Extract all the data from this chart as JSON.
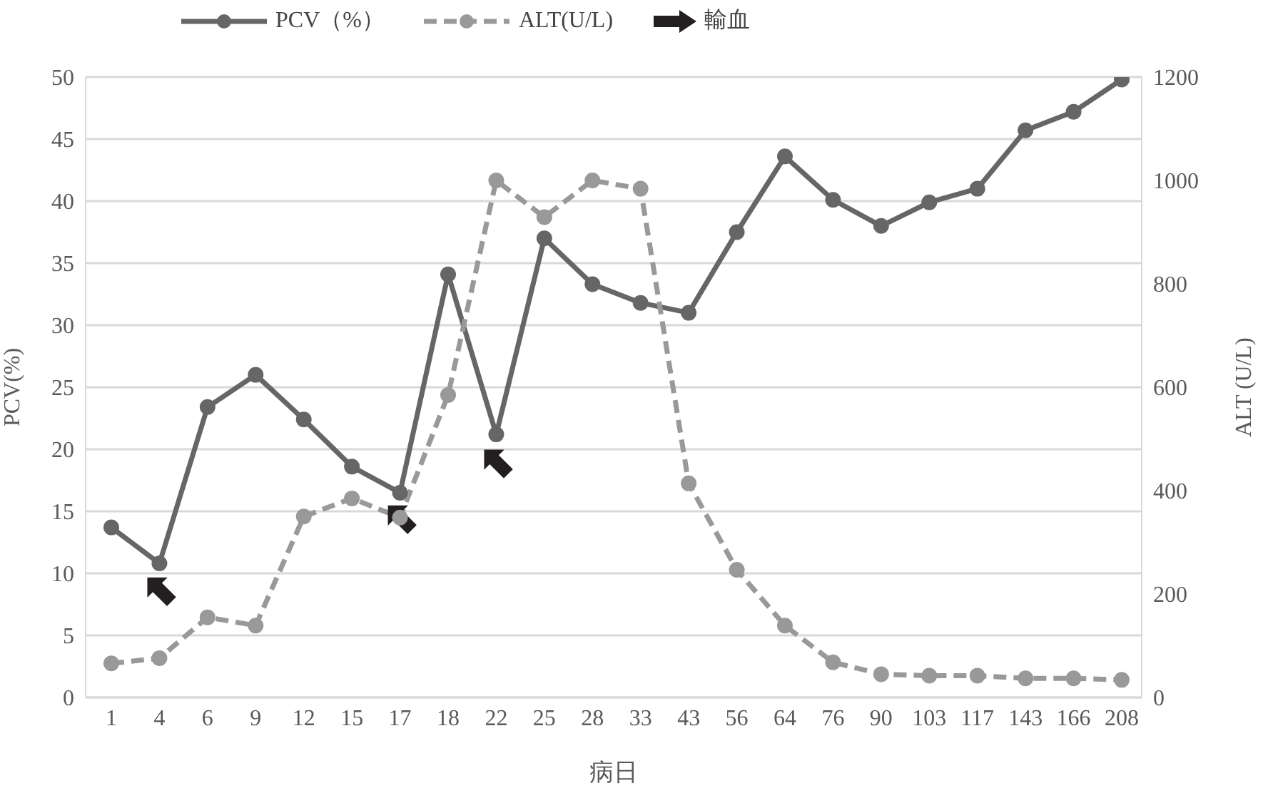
{
  "chart_data": {
    "type": "line",
    "xlabel": "病日",
    "ylabel": "PCV(%)",
    "y2label": "ALT (U/L)",
    "categories": [
      "1",
      "4",
      "6",
      "9",
      "12",
      "15",
      "17",
      "18",
      "22",
      "25",
      "28",
      "33",
      "43",
      "56",
      "64",
      "76",
      "90",
      "103",
      "117",
      "143",
      "166",
      "208"
    ],
    "series": [
      {
        "name": "PCV（%）",
        "color": "#666666",
        "line_style": "solid",
        "marker": "circle",
        "values": [
          13.7,
          10.8,
          23.4,
          26.0,
          22.4,
          18.6,
          16.5,
          34.1,
          21.2,
          37.0,
          33.3,
          31.8,
          31.0,
          37.5,
          43.6,
          40.1,
          38.0,
          39.9,
          41.0,
          45.7,
          47.2,
          49.8
        ]
      },
      {
        "name": "ALT(U/L)",
        "color": "#999999",
        "line_style": "dashed",
        "marker": "circle",
        "axis": "y2",
        "values": [
          66,
          76,
          155,
          139,
          350,
          385,
          348,
          585,
          1000,
          929,
          1000,
          984,
          414,
          247,
          139,
          68,
          45,
          42,
          42,
          37,
          37,
          34
        ]
      },
      {
        "name": "輸血",
        "type": "scatter",
        "color": "#231f20",
        "x": [
          "4",
          "17",
          "22"
        ],
        "values": [
          8.7,
          14.5,
          19.0
        ]
      }
    ],
    "ylim": [
      0,
      50
    ],
    "yticks": [
      0,
      5,
      10,
      15,
      20,
      25,
      30,
      35,
      40,
      45,
      50
    ],
    "y2lim": [
      0,
      1200
    ],
    "y2ticks": [
      0,
      200,
      400,
      600,
      800,
      1000,
      1200
    ],
    "grid": "y",
    "legend": "top"
  }
}
